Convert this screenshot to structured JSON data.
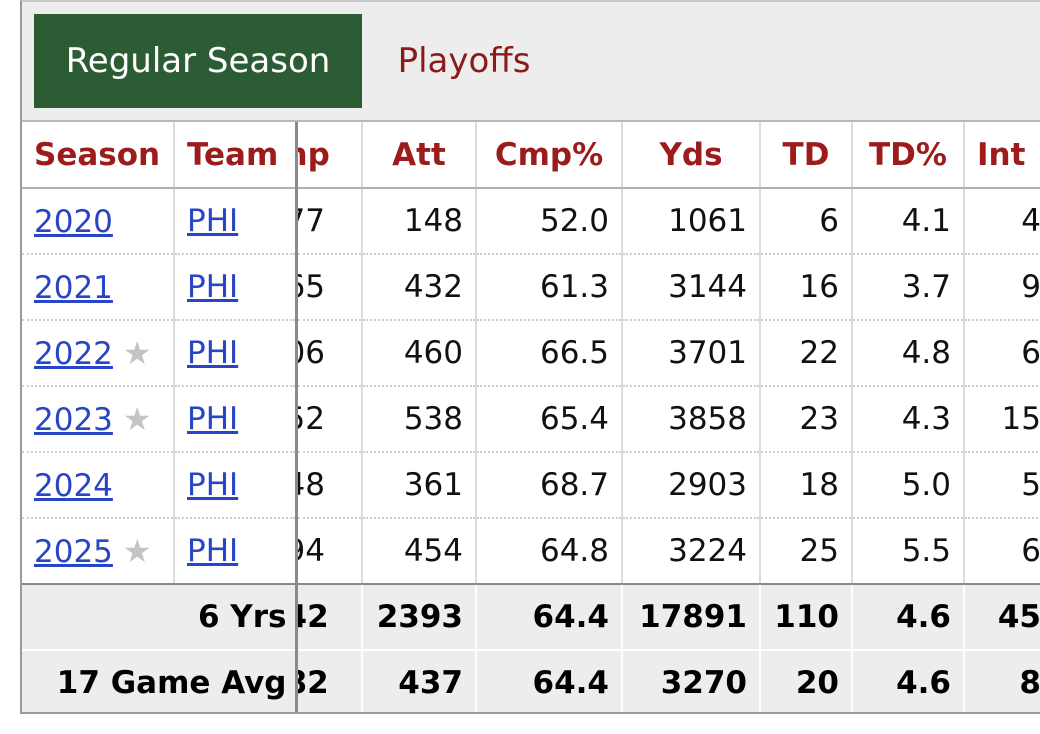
{
  "tabs": {
    "regular": "Regular Season",
    "playoffs": "Playoffs"
  },
  "colors": {
    "tab_active": "#2c5c34",
    "header_text": "#9c1b1b",
    "link": "#2845c8"
  },
  "headers": {
    "season": "Season",
    "team": "Team",
    "cmp": "np",
    "att": "Att",
    "cmp_pct": "Cmp%",
    "yds": "Yds",
    "td": "TD",
    "td_pct": "TD%",
    "int": "Int"
  },
  "rows": [
    {
      "season": "2020",
      "star": "",
      "team": "PHI",
      "cmp": "77",
      "att": "148",
      "cmp_pct": "52.0",
      "yds": "1061",
      "td": "6",
      "td_pct": "4.1",
      "int": "4"
    },
    {
      "season": "2021",
      "star": "",
      "team": "PHI",
      "cmp": "65",
      "att": "432",
      "cmp_pct": "61.3",
      "yds": "3144",
      "td": "16",
      "td_pct": "3.7",
      "int": "9"
    },
    {
      "season": "2022",
      "star": "★",
      "team": "PHI",
      "cmp": "06",
      "att": "460",
      "cmp_pct": "66.5",
      "yds": "3701",
      "td": "22",
      "td_pct": "4.8",
      "int": "6"
    },
    {
      "season": "2023",
      "star": "★",
      "team": "PHI",
      "cmp": "52",
      "att": "538",
      "cmp_pct": "65.4",
      "yds": "3858",
      "td": "23",
      "td_pct": "4.3",
      "int": "15"
    },
    {
      "season": "2024",
      "star": "",
      "team": "PHI",
      "cmp": "48",
      "att": "361",
      "cmp_pct": "68.7",
      "yds": "2903",
      "td": "18",
      "td_pct": "5.0",
      "int": "5"
    },
    {
      "season": "2025",
      "star": "★",
      "team": "PHI",
      "cmp": "94",
      "att": "454",
      "cmp_pct": "64.8",
      "yds": "3224",
      "td": "25",
      "td_pct": "5.5",
      "int": "6"
    }
  ],
  "totals": [
    {
      "label": "6 Yrs",
      "cmp": "42",
      "att": "2393",
      "cmp_pct": "64.4",
      "yds": "17891",
      "td": "110",
      "td_pct": "4.6",
      "int": "45"
    },
    {
      "label": "17 Game Avg",
      "cmp": "82",
      "att": "437",
      "cmp_pct": "64.4",
      "yds": "3270",
      "td": "20",
      "td_pct": "4.6",
      "int": "8"
    }
  ]
}
